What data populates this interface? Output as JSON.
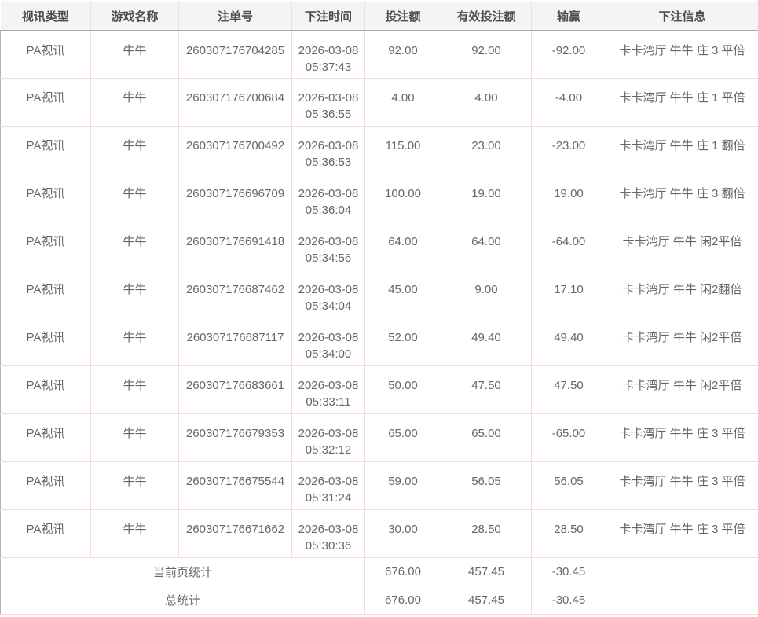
{
  "colors": {
    "header_background": "#f4f4f4",
    "header_text": "#4d4d4d",
    "header_rule": "#a9a9a9",
    "cell_border_pink": "#f7d9d9",
    "row_border": "#eedcdc",
    "body_text": "#666666"
  },
  "table": {
    "columns": [
      {
        "key": "type",
        "label": "视讯类型"
      },
      {
        "key": "game",
        "label": "游戏名称"
      },
      {
        "key": "order_no",
        "label": "注单号"
      },
      {
        "key": "time",
        "label": "下注时间"
      },
      {
        "key": "bet",
        "label": "投注额"
      },
      {
        "key": "valid_bet",
        "label": "有效投注额"
      },
      {
        "key": "win_loss",
        "label": "输赢"
      },
      {
        "key": "info",
        "label": "下注信息"
      }
    ],
    "rows": [
      {
        "type": "PA视讯",
        "game": "牛牛",
        "order_no": "260307176704285",
        "time": "2026-03-08 05:37:43",
        "bet": "92.00",
        "valid_bet": "92.00",
        "win_loss": "-92.00",
        "info": "卡卡湾厅 牛牛 庄 3 平倍"
      },
      {
        "type": "PA视讯",
        "game": "牛牛",
        "order_no": "260307176700684",
        "time": "2026-03-08 05:36:55",
        "bet": "4.00",
        "valid_bet": "4.00",
        "win_loss": "-4.00",
        "info": "卡卡湾厅 牛牛 庄 1 平倍"
      },
      {
        "type": "PA视讯",
        "game": "牛牛",
        "order_no": "260307176700492",
        "time": "2026-03-08 05:36:53",
        "bet": "115.00",
        "valid_bet": "23.00",
        "win_loss": "-23.00",
        "info": "卡卡湾厅 牛牛 庄 1 翻倍"
      },
      {
        "type": "PA视讯",
        "game": "牛牛",
        "order_no": "260307176696709",
        "time": "2026-03-08 05:36:04",
        "bet": "100.00",
        "valid_bet": "19.00",
        "win_loss": "19.00",
        "info": "卡卡湾厅 牛牛 庄 3 翻倍"
      },
      {
        "type": "PA视讯",
        "game": "牛牛",
        "order_no": "260307176691418",
        "time": "2026-03-08 05:34:56",
        "bet": "64.00",
        "valid_bet": "64.00",
        "win_loss": "-64.00",
        "info": "卡卡湾厅 牛牛 闲2平倍"
      },
      {
        "type": "PA视讯",
        "game": "牛牛",
        "order_no": "260307176687462",
        "time": "2026-03-08 05:34:04",
        "bet": "45.00",
        "valid_bet": "9.00",
        "win_loss": "17.10",
        "info": "卡卡湾厅 牛牛 闲2翻倍"
      },
      {
        "type": "PA视讯",
        "game": "牛牛",
        "order_no": "260307176687117",
        "time": "2026-03-08 05:34:00",
        "bet": "52.00",
        "valid_bet": "49.40",
        "win_loss": "49.40",
        "info": "卡卡湾厅 牛牛 闲2平倍"
      },
      {
        "type": "PA视讯",
        "game": "牛牛",
        "order_no": "260307176683661",
        "time": "2026-03-08 05:33:11",
        "bet": "50.00",
        "valid_bet": "47.50",
        "win_loss": "47.50",
        "info": "卡卡湾厅 牛牛 闲2平倍"
      },
      {
        "type": "PA视讯",
        "game": "牛牛",
        "order_no": "260307176679353",
        "time": "2026-03-08 05:32:12",
        "bet": "65.00",
        "valid_bet": "65.00",
        "win_loss": "-65.00",
        "info": "卡卡湾厅 牛牛 庄 3 平倍"
      },
      {
        "type": "PA视讯",
        "game": "牛牛",
        "order_no": "260307176675544",
        "time": "2026-03-08 05:31:24",
        "bet": "59.00",
        "valid_bet": "56.05",
        "win_loss": "56.05",
        "info": "卡卡湾厅 牛牛 庄 3 平倍"
      },
      {
        "type": "PA视讯",
        "game": "牛牛",
        "order_no": "260307176671662",
        "time": "2026-03-08 05:30:36",
        "bet": "30.00",
        "valid_bet": "28.50",
        "win_loss": "28.50",
        "info": "卡卡湾厅 牛牛 庄 3 平倍"
      }
    ],
    "summary_rows": [
      {
        "label": "当前页统计",
        "values": [
          "676.00",
          "457.45",
          "-30.45"
        ]
      },
      {
        "label": "总统计",
        "values": [
          "676.00",
          "457.45",
          "-30.45"
        ]
      }
    ]
  }
}
